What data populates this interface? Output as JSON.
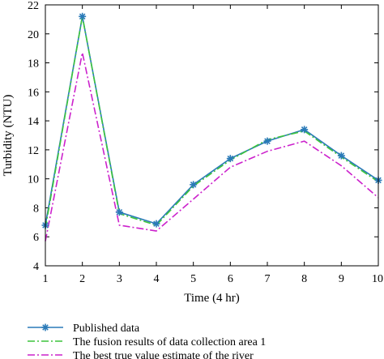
{
  "chart_data": {
    "type": "line",
    "xlabel": "Time (4 hr)",
    "ylabel": "Turbidity (NTU)",
    "x": [
      1,
      2,
      3,
      4,
      5,
      6,
      7,
      8,
      9,
      10
    ],
    "xlim": [
      1,
      10
    ],
    "ylim": [
      4,
      22
    ],
    "xticks": [
      "1",
      "2",
      "3",
      "4",
      "5",
      "6",
      "7",
      "8",
      "9",
      "10"
    ],
    "yticks": [
      "4",
      "6",
      "8",
      "10",
      "12",
      "14",
      "16",
      "18",
      "20",
      "22"
    ],
    "grid": false,
    "legend_position": "bottom",
    "series": [
      {
        "name": "Published data",
        "values": [
          6.8,
          21.2,
          7.7,
          6.9,
          9.6,
          11.4,
          12.6,
          13.4,
          11.6,
          9.9
        ],
        "color": "#2a7ab8",
        "line_style": "solid",
        "marker": "asterisk"
      },
      {
        "name": "The fusion results of data collection area 1",
        "values": [
          6.6,
          21.2,
          7.6,
          6.8,
          9.5,
          11.3,
          12.7,
          13.3,
          11.5,
          9.8
        ],
        "color": "#3cc43c",
        "line_style": "dashdot",
        "marker": "none"
      },
      {
        "name": "The best true value estimate of the river",
        "values": [
          5.7,
          18.7,
          6.8,
          6.4,
          8.6,
          10.8,
          11.9,
          12.6,
          10.9,
          8.7
        ],
        "color": "#cc22cc",
        "line_style": "dashdot",
        "marker": "none"
      }
    ]
  }
}
